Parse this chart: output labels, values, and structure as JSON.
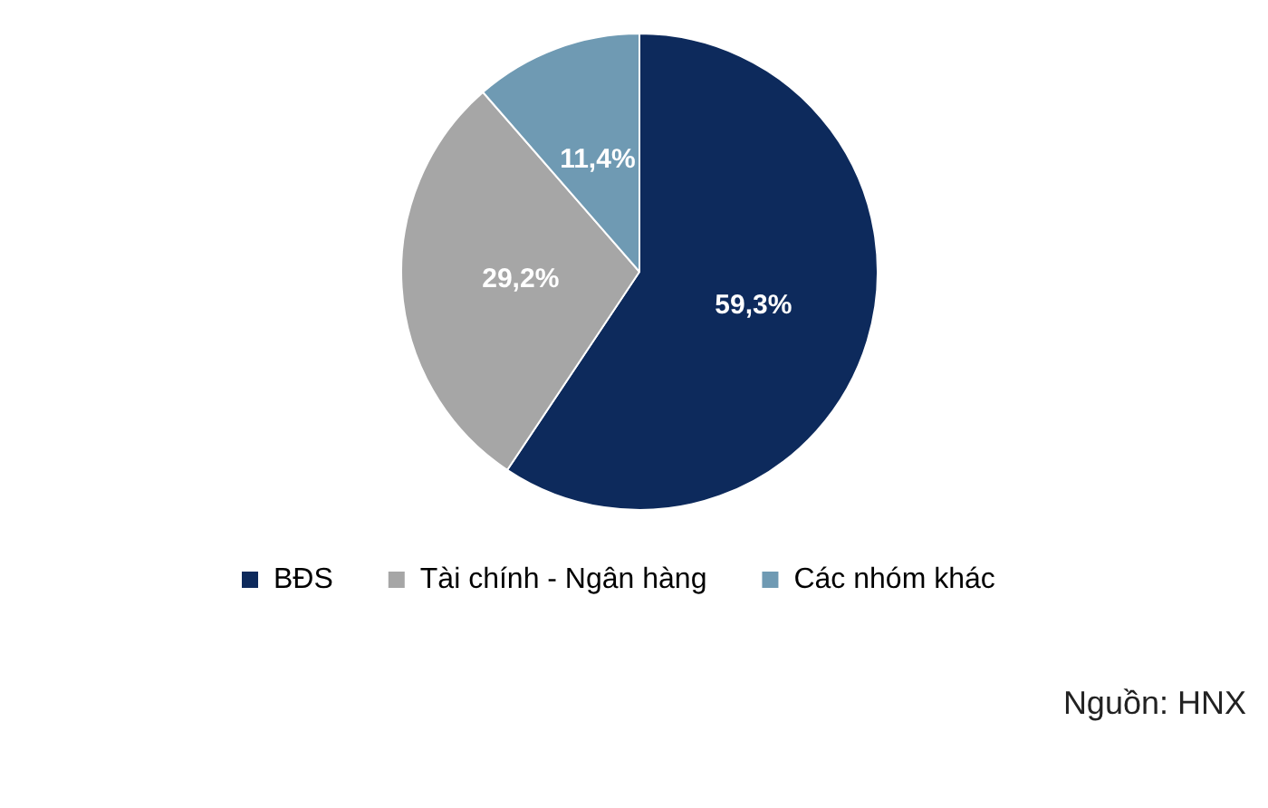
{
  "chart_data": {
    "type": "pie",
    "categories": [
      "BĐS",
      "Tài chính - Ngân hàng",
      "Các nhóm khác"
    ],
    "values": [
      59.3,
      29.2,
      11.4
    ],
    "colors": [
      "#0d2a5c",
      "#a6a6a6",
      "#6f9ab3"
    ],
    "value_labels": [
      "59,3%",
      "29,2%",
      "11,4%"
    ],
    "legend": "bottom",
    "annotations": [
      "Nguồn: HNX"
    ]
  }
}
